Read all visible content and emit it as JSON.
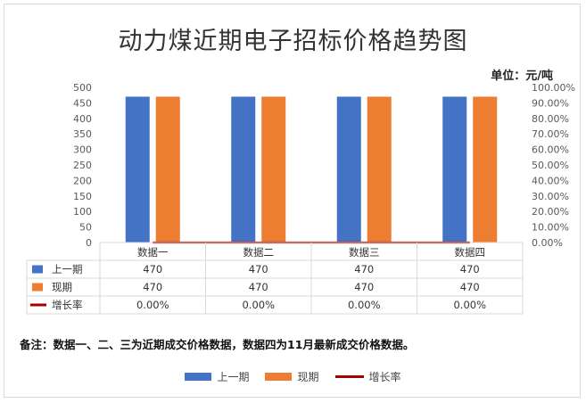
{
  "title": "动力煤近期电子招标价格趋势图",
  "unit": "单位：元/吨",
  "note": "备注：数据一、二、三为近期成交价格数据，数据四为11月最新成交价格数据。",
  "colors": {
    "series1": "#4472C4",
    "series2": "#ED7D31",
    "series3": "#A50000"
  },
  "chart_data": {
    "type": "bar",
    "categories": [
      "数据一",
      "数据二",
      "数据三",
      "数据四"
    ],
    "series": [
      {
        "name": "上一期",
        "type": "bar",
        "axis": "left",
        "values": [
          470,
          470,
          470,
          470
        ],
        "labels": [
          "470",
          "470",
          "470",
          "470"
        ]
      },
      {
        "name": "现期",
        "type": "bar",
        "axis": "left",
        "values": [
          470,
          470,
          470,
          470
        ],
        "labels": [
          "470",
          "470",
          "470",
          "470"
        ]
      },
      {
        "name": "增长率",
        "type": "line",
        "axis": "right",
        "values": [
          0,
          0,
          0,
          0
        ],
        "labels": [
          "0.00%",
          "0.00%",
          "0.00%",
          "0.00%"
        ]
      }
    ],
    "ylim": [
      0,
      500
    ],
    "y2lim": [
      0,
      1
    ],
    "y_ticks": [
      "0",
      "50",
      "100",
      "150",
      "200",
      "250",
      "300",
      "350",
      "400",
      "450",
      "500"
    ],
    "y2_ticks": [
      "0.00%",
      "10.00%",
      "20.00%",
      "30.00%",
      "40.00%",
      "50.00%",
      "60.00%",
      "70.00%",
      "80.00%",
      "90.00%",
      "100.00%"
    ],
    "data_table": true,
    "legend_position": "bottom"
  }
}
